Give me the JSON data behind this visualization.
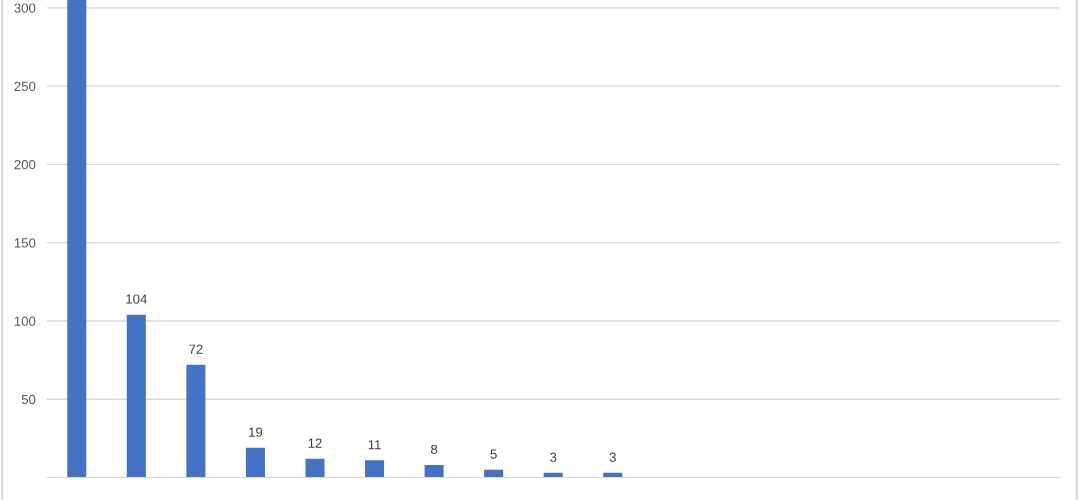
{
  "chart_data": {
    "type": "bar",
    "categories": [
      null,
      null,
      null,
      null,
      null,
      null,
      null,
      null,
      null,
      null,
      null,
      null,
      null,
      null,
      null,
      null,
      null
    ],
    "values": [
      305,
      104,
      72,
      19,
      12,
      11,
      8,
      5,
      3,
      3,
      null,
      null,
      null,
      null,
      null,
      null,
      null
    ],
    "value_labels": [
      null,
      "104",
      "72",
      "19",
      "12",
      "11",
      "8",
      "5",
      "3",
      "3",
      null,
      null,
      null,
      null,
      null,
      null,
      null
    ],
    "color": "#4472c4",
    "ylim": [
      0,
      305
    ],
    "yticks": [
      50,
      100,
      150,
      200,
      250,
      300
    ],
    "grid": "y"
  }
}
